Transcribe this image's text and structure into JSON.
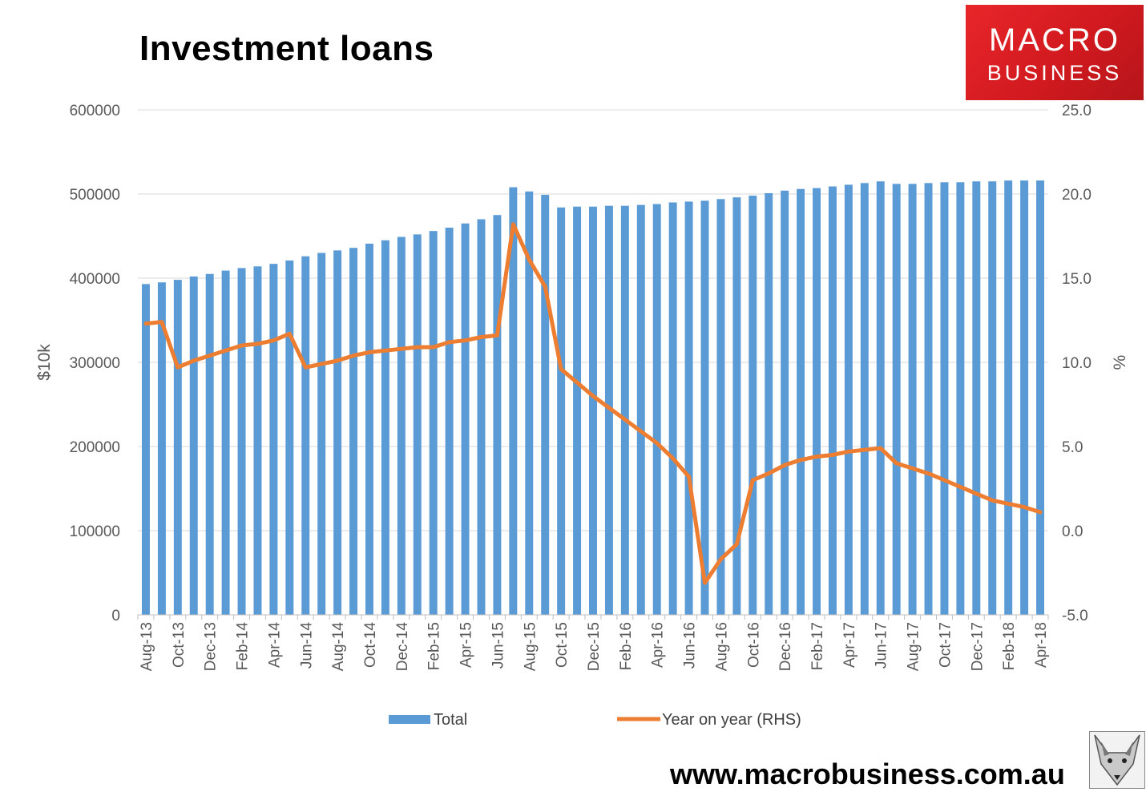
{
  "title": "Investment loans",
  "logo": {
    "line1": "MACRO",
    "line2": "BUSINESS"
  },
  "website": "www.macrobusiness.com.au",
  "colors": {
    "bar": "#5b9bd5",
    "line": "#ed7d31",
    "logo": "#e0201f"
  },
  "icons": {
    "mascot": "fox-head-icon"
  },
  "chart_data": {
    "type": "bar",
    "title": "Investment loans",
    "ylabel": "$10k",
    "y2label": "%",
    "ylim": [
      0,
      600000
    ],
    "y2lim": [
      -5,
      25
    ],
    "yticks": [
      0,
      100000,
      200000,
      300000,
      400000,
      500000,
      600000
    ],
    "y2ticks": [
      "-5.0",
      "0.0",
      "5.0",
      "10.0",
      "15.0",
      "20.0",
      "25.0"
    ],
    "xtick_labels": [
      "Aug-13",
      "Oct-13",
      "Dec-13",
      "Feb-14",
      "Apr-14",
      "Jun-14",
      "Aug-14",
      "Oct-14",
      "Dec-14",
      "Feb-15",
      "Apr-15",
      "Jun-15",
      "Aug-15",
      "Oct-15",
      "Dec-15",
      "Feb-16",
      "Apr-16",
      "Jun-16",
      "Aug-16",
      "Oct-16",
      "Dec-16",
      "Feb-17",
      "Apr-17",
      "Jun-17",
      "Aug-17",
      "Oct-17",
      "Dec-17",
      "Feb-18",
      "Apr-18"
    ],
    "legend_position": "bottom",
    "grid": true,
    "categories": [
      "Aug-13",
      "Sep-13",
      "Oct-13",
      "Nov-13",
      "Dec-13",
      "Jan-14",
      "Feb-14",
      "Mar-14",
      "Apr-14",
      "May-14",
      "Jun-14",
      "Jul-14",
      "Aug-14",
      "Sep-14",
      "Oct-14",
      "Nov-14",
      "Dec-14",
      "Jan-15",
      "Feb-15",
      "Mar-15",
      "Apr-15",
      "May-15",
      "Jun-15",
      "Jul-15",
      "Aug-15",
      "Sep-15",
      "Oct-15",
      "Nov-15",
      "Dec-15",
      "Jan-16",
      "Feb-16",
      "Mar-16",
      "Apr-16",
      "May-16",
      "Jun-16",
      "Jul-16",
      "Aug-16",
      "Sep-16",
      "Oct-16",
      "Nov-16",
      "Dec-16",
      "Jan-17",
      "Feb-17",
      "Mar-17",
      "Apr-17",
      "May-17",
      "Jun-17",
      "Jul-17",
      "Aug-17",
      "Sep-17",
      "Oct-17",
      "Nov-17",
      "Dec-17",
      "Jan-18",
      "Feb-18",
      "Mar-18",
      "Apr-18"
    ],
    "series": [
      {
        "name": "Total",
        "type": "bar",
        "axis": "left",
        "values": [
          393000,
          395000,
          398000,
          402000,
          405000,
          409000,
          412000,
          414000,
          417000,
          421000,
          426000,
          430000,
          433000,
          436000,
          441000,
          445000,
          449000,
          452000,
          456000,
          460000,
          465000,
          470000,
          475000,
          508000,
          503000,
          499000,
          484000,
          485000,
          485000,
          486000,
          486000,
          487000,
          488000,
          490000,
          491000,
          492000,
          494000,
          496000,
          498000,
          501000,
          504000,
          506000,
          507000,
          509000,
          511000,
          513000,
          515000,
          512000,
          512000,
          513000,
          514000,
          514000,
          515000,
          515000,
          516000,
          516000,
          516000
        ]
      },
      {
        "name": "Year on year (RHS)",
        "type": "line",
        "axis": "right",
        "values": [
          12.3,
          12.4,
          9.7,
          10.1,
          10.4,
          10.7,
          11.0,
          11.1,
          11.3,
          11.7,
          9.7,
          9.9,
          10.1,
          10.4,
          10.6,
          10.7,
          10.8,
          10.9,
          10.9,
          11.2,
          11.3,
          11.5,
          11.6,
          18.2,
          16.1,
          14.5,
          9.6,
          8.8,
          8.0,
          7.3,
          6.6,
          5.9,
          5.2,
          4.3,
          3.2,
          -3.1,
          -1.7,
          -0.8,
          3.0,
          3.4,
          3.9,
          4.2,
          4.4,
          4.5,
          4.7,
          4.8,
          4.9,
          4.0,
          3.7,
          3.4,
          3.0,
          2.6,
          2.2,
          1.8,
          1.6,
          1.4,
          1.1
        ]
      }
    ]
  }
}
